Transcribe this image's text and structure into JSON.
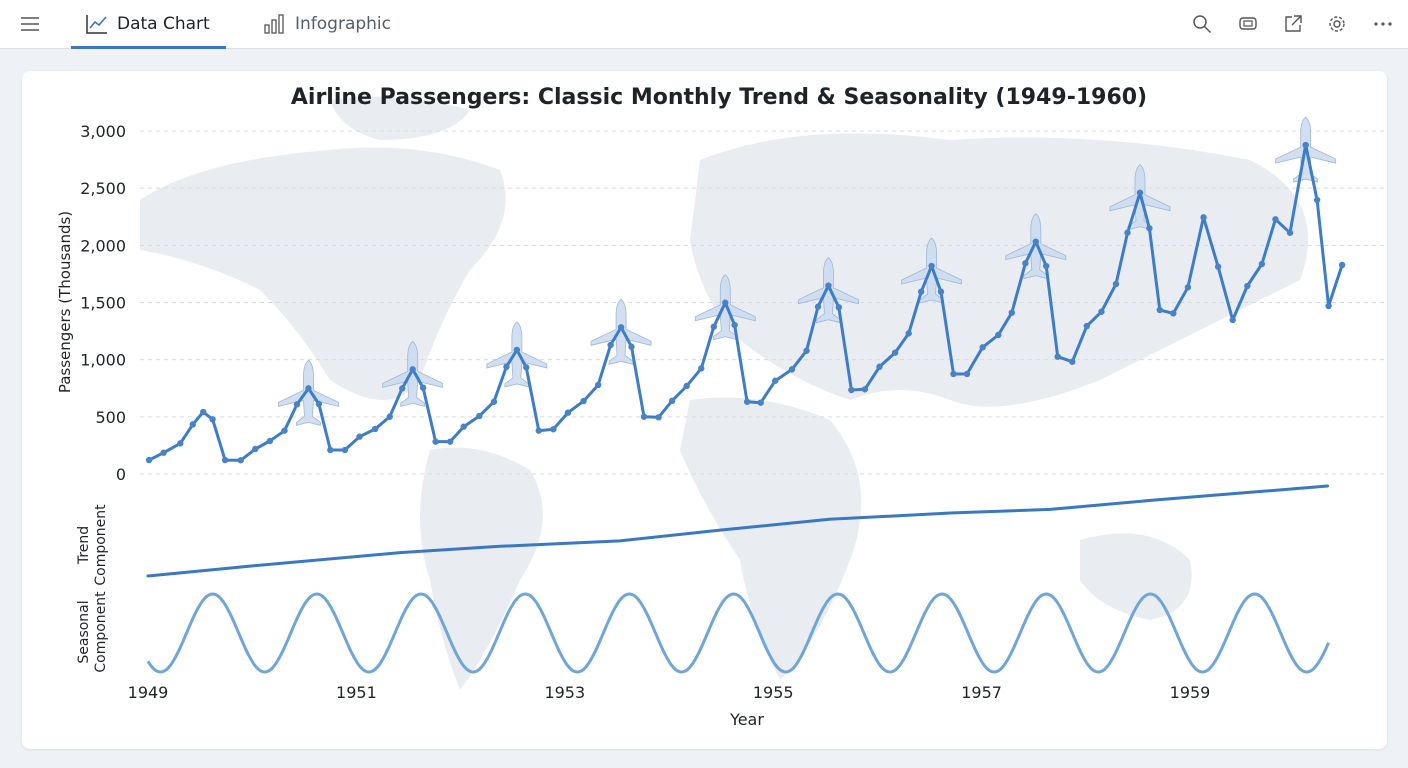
{
  "toolbar": {
    "tabs": [
      {
        "label": "Data Chart",
        "icon": "line-chart-icon",
        "active": true
      },
      {
        "label": "Infographic",
        "icon": "bar-chart-icon",
        "active": false
      }
    ],
    "actions": [
      "search-icon",
      "comment-icon",
      "open-external-icon",
      "gear-icon",
      "more-icon"
    ],
    "accent": "#3b78c4"
  },
  "chart_data": {
    "type": "line",
    "title": "Airline Passengers: Classic Monthly Trend & Seasonality (1949-1960)",
    "xlabel": "Year",
    "ylabel": "Passengers (Thousands)",
    "xlim": [
      1949,
      1960.5
    ],
    "ylim": [
      0,
      3000
    ],
    "yticks": [
      0,
      500,
      1000,
      1500,
      2000,
      2500,
      3000
    ],
    "ytick_labels": [
      "0",
      "500",
      "1,000",
      "1,500",
      "2,000",
      "2,500",
      "3,000"
    ],
    "xticks": [
      1949,
      1951,
      1953,
      1955,
      1957,
      1959
    ],
    "xtick_labels": [
      "1949",
      "1951",
      "1953",
      "1955",
      "1957",
      "1959"
    ],
    "grid": true,
    "line_color": "#3d7cc9",
    "background": "world map",
    "series": [
      {
        "x": [
          1949.01,
          1949.15,
          1949.31,
          1949.43,
          1949.53,
          1949.62,
          1949.74,
          1949.89,
          1950.03,
          1950.17,
          1950.31,
          1950.43,
          1950.54,
          1950.64,
          1950.75,
          1950.89,
          1951.03,
          1951.18,
          1951.32,
          1951.44,
          1951.54,
          1951.64,
          1951.76,
          1951.9,
          1952.03,
          1952.18,
          1952.32,
          1952.44,
          1952.54,
          1952.63,
          1952.75,
          1952.89,
          1953.03,
          1953.18,
          1953.32,
          1953.44,
          1953.54,
          1953.64,
          1953.76,
          1953.9,
          1954.03,
          1954.17,
          1954.31,
          1954.43,
          1954.54,
          1954.63,
          1954.75,
          1954.88,
          1955.02,
          1955.18,
          1955.32,
          1955.43,
          1955.53,
          1955.63,
          1955.75,
          1955.88,
          1956.02,
          1956.17,
          1956.3,
          1956.42,
          1956.52,
          1956.61,
          1956.73,
          1956.86,
          1957.01,
          1957.16,
          1957.29,
          1957.42,
          1957.52,
          1957.62,
          1957.73,
          1957.87,
          1958.01,
          1958.15,
          1958.29,
          1958.4,
          1958.52,
          1958.61,
          1958.71,
          1958.84,
          1958.98,
          1959.13,
          1959.27,
          1959.41,
          1959.55,
          1959.69,
          1959.82,
          1959.96,
          1960.11,
          1960.22,
          1960.33,
          1960.46
        ],
        "values": [
          122,
          186,
          268,
          434,
          542,
          478,
          122,
          120,
          219,
          289,
          379,
          609,
          749,
          612,
          210,
          210,
          326,
          394,
          501,
          749,
          915,
          755,
          283,
          283,
          414,
          507,
          632,
          938,
          1085,
          933,
          379,
          391,
          536,
          638,
          778,
          1128,
          1283,
          1113,
          501,
          496,
          640,
          770,
          924,
          1288,
          1498,
          1303,
          632,
          624,
          816,
          915,
          1078,
          1463,
          1647,
          1458,
          735,
          741,
          938,
          1061,
          1230,
          1594,
          1819,
          1594,
          875,
          875,
          1108,
          1216,
          1411,
          1843,
          2032,
          1819,
          1026,
          982,
          1294,
          1419,
          1662,
          2110,
          2460,
          2149,
          1434,
          1405,
          1633,
          2245,
          1813,
          1347,
          1644,
          1837,
          2228,
          2110,
          2877,
          2396,
          1469,
          1828
        ]
      }
    ],
    "plane_markers_at": [
      1950.54,
      1951.54,
      1952.54,
      1953.54,
      1954.54,
      1955.53,
      1956.52,
      1957.52,
      1958.52,
      1960.11
    ],
    "components": [
      {
        "label": "Trend Component",
        "label_lines": [
          "Trend",
          "Component"
        ],
        "color": "#3a78c2",
        "x": [
          1949,
          1949.98,
          1951.42,
          1952.38,
          1953.53,
          1954.49,
          1955.54,
          1956.7,
          1957.66,
          1958.62,
          1959.58,
          1960.32
        ],
        "relative_level": [
          0,
          0.11,
          0.26,
          0.33,
          0.39,
          0.51,
          0.63,
          0.7,
          0.74,
          0.84,
          0.93,
          1.0
        ]
      },
      {
        "label": "Seasonal Component",
        "label_lines": [
          "Seasonal",
          "Component"
        ],
        "color": "#6fa5d8",
        "shape": "sine",
        "period_years": 1,
        "first_peak": 1949.62,
        "x_range": [
          1949,
          1960.33
        ]
      }
    ]
  }
}
